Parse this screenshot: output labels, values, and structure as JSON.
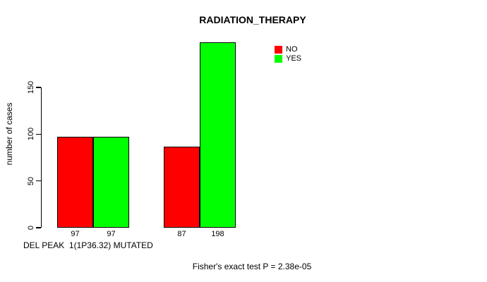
{
  "chart_data": {
    "type": "bar",
    "title": "RADIATION_THERAPY",
    "ylabel": "number of cases",
    "xlabel": "DEL PEAK  1(1P36.32) MUTATED",
    "yticks": [
      0,
      50,
      100,
      150
    ],
    "ylim": [
      0,
      205
    ],
    "grid": false,
    "background": "#ffffff",
    "legend_position": "top-right",
    "series": [
      {
        "name": "NO",
        "color": "#FF0000",
        "values": [
          97,
          87
        ]
      },
      {
        "name": "YES",
        "color": "#00FF00",
        "values": [
          97,
          198
        ]
      }
    ],
    "bar_value_labels": [
      [
        97,
        97
      ],
      [
        87,
        198
      ]
    ],
    "annotation": "Fisher's exact test P = 2.38e-05"
  }
}
